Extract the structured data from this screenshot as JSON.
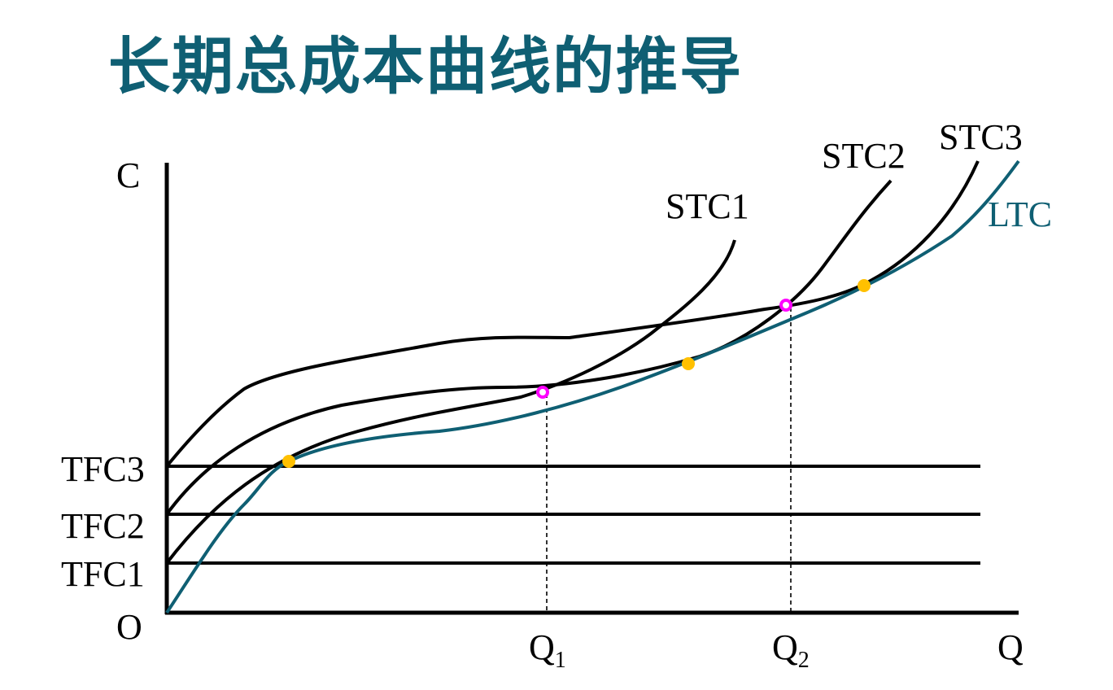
{
  "title": "长期总成本曲线的推导",
  "axes": {
    "y_label": "C",
    "x_label": "Q",
    "origin_label": "O"
  },
  "fixed_cost_labels": [
    "TFC1",
    "TFC2",
    "TFC3"
  ],
  "quantity_labels": [
    {
      "main": "Q",
      "sub": "1"
    },
    {
      "main": "Q",
      "sub": "2"
    }
  ],
  "curve_labels": {
    "stc1": "STC1",
    "stc2": "STC2",
    "stc3": "STC3",
    "ltc": "LTC"
  },
  "colors": {
    "title": "#0f5f73",
    "ltc": "#0f5f73",
    "tangent_point": "#ffc000",
    "intersection_point": "#ff00ff",
    "axis": "#000000"
  }
}
